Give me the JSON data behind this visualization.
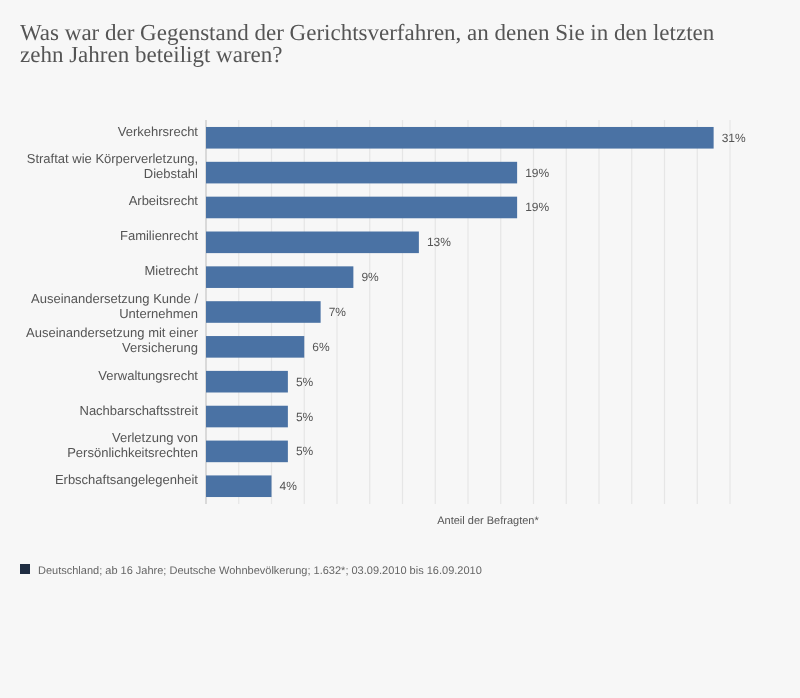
{
  "chart_data": {
    "type": "bar",
    "orientation": "horizontal",
    "title": "Was war der Gegenstand der Gerichtsverfahren, an denen Sie in den letzten zehn Jahren beteiligt waren?",
    "xlabel": "Anteil der Befragten*",
    "categories": [
      "Verkehrsrecht",
      "Straftat wie Körperverletzung, Diebstahl",
      "Arbeitsrecht",
      "Familienrecht",
      "Mietrecht",
      "Auseinandersetzung Kunde / Unternehmen",
      "Auseinandersetzung mit einer Versicherung",
      "Verwaltungsrecht",
      "Nachbarschaftsstreit",
      "Verletzung von Persönlichkeitsrechten",
      "Erbschaftsangelegenheit"
    ],
    "values": [
      31,
      19,
      19,
      13,
      9,
      7,
      6,
      5,
      5,
      5,
      4
    ],
    "value_labels": [
      "31%",
      "19%",
      "19%",
      "13%",
      "9%",
      "7%",
      "6%",
      "5%",
      "5%",
      "5%",
      "4%"
    ],
    "color": "#4a72a4",
    "xlim": [
      0,
      32
    ],
    "xticks": [
      {
        "value": 0,
        "label": null
      },
      {
        "value": 2,
        "label": null
      },
      {
        "value": 4,
        "label": null
      },
      {
        "value": 6,
        "label": null
      },
      {
        "value": 8,
        "label": null
      },
      {
        "value": 10,
        "label": null
      },
      {
        "value": 12,
        "label": null
      },
      {
        "value": 14,
        "label": null
      },
      {
        "value": 16,
        "label": null
      },
      {
        "value": 18,
        "label": null
      },
      {
        "value": 20,
        "label": null
      },
      {
        "value": 22,
        "label": null
      },
      {
        "value": 24,
        "label": null
      },
      {
        "value": 26,
        "label": null
      },
      {
        "value": 28,
        "label": null
      },
      {
        "value": 30,
        "label": null
      },
      {
        "value": 32,
        "label": null
      }
    ],
    "grid": "x",
    "tick_labels": "y",
    "annotations": [
      "Deutschland; ab 16 Jahre; Deutsche Wohnbevölkerung; 1.632*; 03.09.2010 bis 16.09.2010"
    ]
  }
}
